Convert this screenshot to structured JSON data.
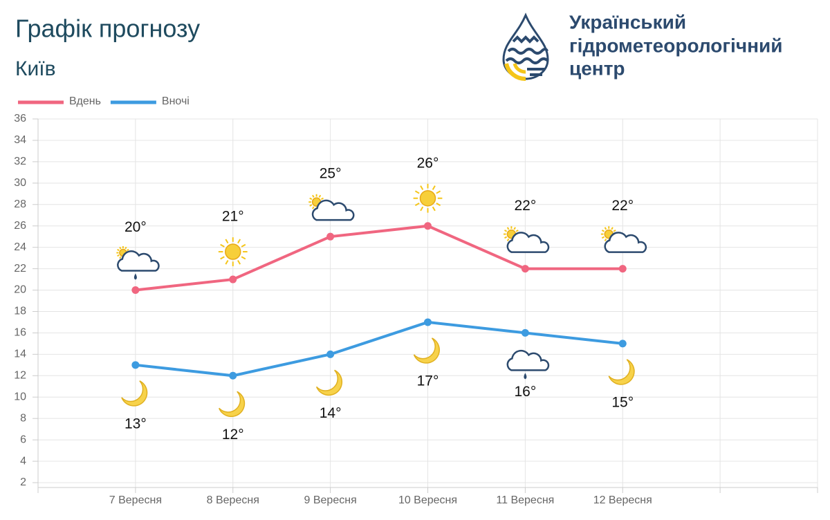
{
  "chart_data": {
    "type": "line",
    "title": "Графік прогнозу",
    "subtitle": "Київ",
    "categories": [
      null,
      "7 Вересня",
      "8 Вересня",
      "9 Вересня",
      "10 Вересня",
      "11 Вересня",
      "12 Вересня",
      null,
      null
    ],
    "series": [
      {
        "name": "Вдень",
        "color": "#f06680",
        "values": [
          null,
          20,
          21,
          25,
          26,
          22,
          22,
          null,
          null
        ],
        "value_labels": [
          null,
          "20°",
          "21°",
          "25°",
          "26°",
          "22°",
          "22°",
          null,
          null
        ]
      },
      {
        "name": "Вночі",
        "color": "#3d9be0",
        "values": [
          null,
          13,
          12,
          14,
          17,
          16,
          15,
          null,
          null
        ],
        "value_labels": [
          null,
          "13°",
          "12°",
          "14°",
          "17°",
          "16°",
          "15°",
          null,
          null
        ]
      }
    ],
    "ylim": [
      2,
      36
    ],
    "yticks": [
      2,
      4,
      6,
      8,
      10,
      12,
      14,
      16,
      18,
      20,
      22,
      24,
      26,
      28,
      30,
      32,
      34,
      36
    ],
    "grid": true,
    "legend": "top-left"
  },
  "logo": {
    "lines": [
      "Український",
      "гідрометеорологічний",
      "центр"
    ]
  }
}
